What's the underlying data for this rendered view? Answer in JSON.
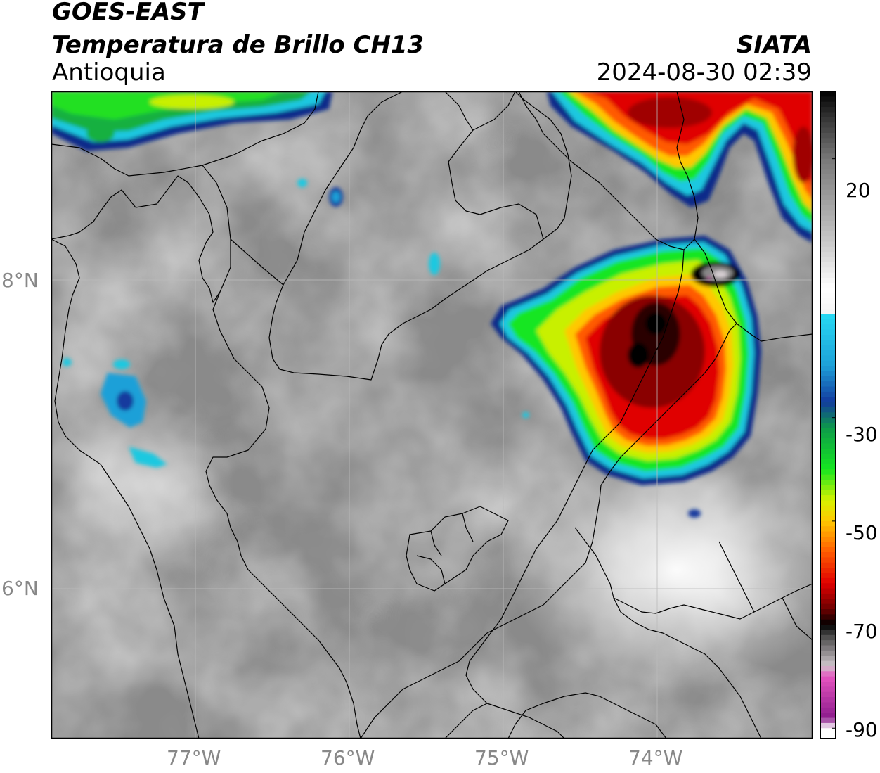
{
  "header": {
    "satellite": "GOES-EAST",
    "product": "Temperatura de Brillo CH13",
    "region": "Antioquia",
    "agency": "SIATA",
    "timestamp": "2024-08-30 02:39"
  },
  "map": {
    "lon_range": [
      -77.95,
      -73.05
    ],
    "lat_range": [
      5.05,
      9.15
    ],
    "lon_ticks": [
      -77,
      -76,
      -75,
      -74
    ],
    "lat_ticks": [
      8,
      6
    ],
    "lon_tick_labels": [
      "77°W",
      "76°W",
      "75°W",
      "74°W"
    ],
    "lat_tick_labels": [
      "8°N",
      "6°N"
    ],
    "gridlines": true,
    "background_color": "#8a8a8a"
  },
  "colorbar": {
    "tick_labels": [
      "20",
      "-30",
      "-50",
      "-70",
      "-90"
    ],
    "tick_values": [
      20,
      -30,
      -50,
      -70,
      -90
    ],
    "range": [
      33,
      -92
    ],
    "stops": [
      {
        "value": 33,
        "color": "#000000"
      },
      {
        "value": 28,
        "color": "#333333"
      },
      {
        "value": 20,
        "color": "#777777"
      },
      {
        "value": 5,
        "color": "#c2c2c2"
      },
      {
        "value": -5,
        "color": "#ffffff"
      },
      {
        "value": -10,
        "color": "#f4f4f4"
      },
      {
        "value": -10.5,
        "color": "#27d7f2"
      },
      {
        "value": -20,
        "color": "#1ea0d8"
      },
      {
        "value": -27,
        "color": "#123a9e"
      },
      {
        "value": -32,
        "color": "#0d9a4a"
      },
      {
        "value": -40,
        "color": "#15e620"
      },
      {
        "value": -46,
        "color": "#d7f200"
      },
      {
        "value": -50,
        "color": "#ffc800"
      },
      {
        "value": -56,
        "color": "#ff5a00"
      },
      {
        "value": -62,
        "color": "#e00000"
      },
      {
        "value": -67,
        "color": "#6e0000"
      },
      {
        "value": -70,
        "color": "#000000"
      },
      {
        "value": -72,
        "color": "#444444"
      },
      {
        "value": -78,
        "color": "#cfc6cc"
      },
      {
        "value": -80,
        "color": "#e655c0"
      },
      {
        "value": -88,
        "color": "#8c1b8c"
      },
      {
        "value": -90,
        "color": "#ffffff"
      }
    ]
  },
  "features": {
    "storm_cells": [
      {
        "name": "storm-cell-central-east",
        "center_lon": -74.05,
        "center_lat": 7.55,
        "min_temp": -72
      },
      {
        "name": "storm-cell-northeast",
        "center_lon": -73.6,
        "center_lat": 8.8,
        "min_temp": -65
      },
      {
        "name": "storm-cell-northwest",
        "center_lon": -77.3,
        "center_lat": 9.05,
        "min_temp": -45
      }
    ]
  }
}
